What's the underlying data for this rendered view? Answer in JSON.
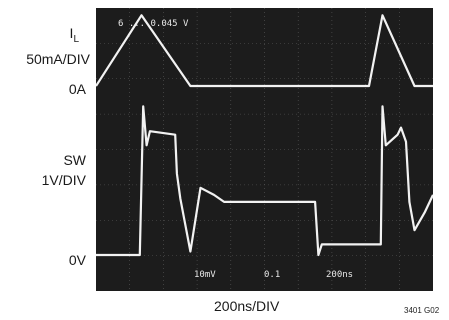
{
  "channel1": {
    "name": "I",
    "sub": "L",
    "scale": "50mA/DIV",
    "ref": "0A"
  },
  "channel2": {
    "name": "SW",
    "scale": "1V/DIV",
    "ref": "0V"
  },
  "xlabel": "200ns/DIV",
  "figure_id": "3401 G02",
  "osd": {
    "top_readout": "6 ... 0.045 V",
    "bottom_left": "10mV",
    "bottom_mid": "0.1",
    "bottom_right": "200ns"
  },
  "chart_data": {
    "type": "line",
    "grid": true,
    "x_units": "ns",
    "x_divisions": 10,
    "y_divisions": 8,
    "xlim": [
      0,
      2000
    ],
    "series": [
      {
        "name": "I",
        "units": "mA",
        "x": [
          0,
          270,
          560,
          700,
          1460,
          1620,
          1700,
          1890,
          2000
        ],
        "values": [
          0,
          100,
          0,
          0,
          0,
          0,
          100,
          0,
          0
        ]
      },
      {
        "name": "SW",
        "units": "V",
        "x": [
          0,
          260,
          280,
          300,
          320,
          470,
          480,
          500,
          560,
          620,
          700,
          760,
          1300,
          1320,
          1340,
          1380,
          1690,
          1700,
          1720,
          1790,
          1810,
          1840,
          1860,
          1890,
          1950,
          2000
        ],
        "values": [
          0,
          0,
          4.2,
          3.1,
          3.5,
          3.4,
          2.3,
          1.6,
          0.1,
          1.9,
          1.7,
          1.5,
          1.5,
          0,
          0.3,
          0.3,
          0.3,
          4.2,
          3.1,
          3.4,
          3.6,
          3.2,
          1.5,
          0.7,
          1.2,
          1.7
        ]
      }
    ]
  }
}
